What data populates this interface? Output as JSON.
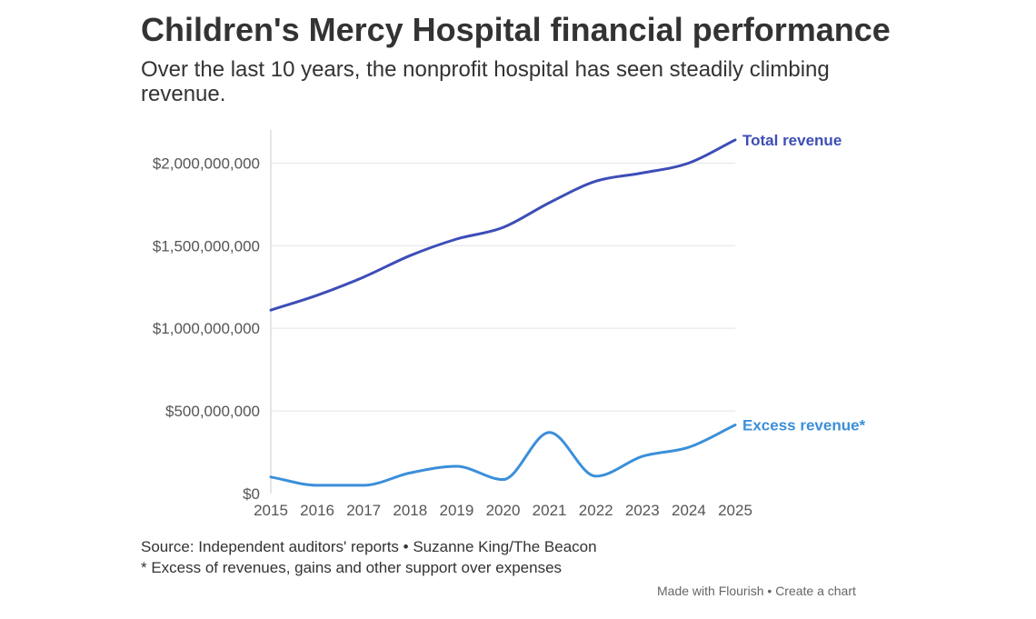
{
  "header": {
    "title": "Children's Mercy Hospital financial performance",
    "subtitle": "Over the last 10 years, the nonprofit hospital has seen steadily climbing revenue."
  },
  "chart_data": {
    "type": "line",
    "title": "Children's Mercy Hospital financial performance",
    "xlabel": "",
    "ylabel": "",
    "x": [
      "2015",
      "2016",
      "2017",
      "2018",
      "2019",
      "2020",
      "2021",
      "2022",
      "2023",
      "2024",
      "2025"
    ],
    "ylim": [
      0,
      2200000000
    ],
    "yticks": [
      0,
      500000000,
      1000000000,
      1500000000,
      2000000000
    ],
    "ytick_labels": [
      "$0",
      "$500,000,000",
      "$1,000,000,000",
      "$1,500,000,000",
      "$2,000,000,000"
    ],
    "grid": true,
    "series": [
      {
        "name": "Total revenue",
        "color": "#3d4db7",
        "values": [
          1110000000,
          1200000000,
          1310000000,
          1440000000,
          1540000000,
          1610000000,
          1760000000,
          1890000000,
          1940000000,
          2000000000,
          2140000000
        ]
      },
      {
        "name": "Excess revenue*",
        "color": "#3b8fd9",
        "values": [
          100000000,
          50000000,
          50000000,
          125000000,
          165000000,
          85000000,
          370000000,
          105000000,
          225000000,
          280000000,
          415000000
        ]
      }
    ]
  },
  "footer": {
    "source": "Source: Independent auditors' reports • Suzanne King/The Beacon",
    "note": "* Excess of revenues, gains and other support over expenses"
  },
  "credit": {
    "made_with": "Made with Flourish",
    "separator": " • ",
    "create": "Create a chart"
  }
}
